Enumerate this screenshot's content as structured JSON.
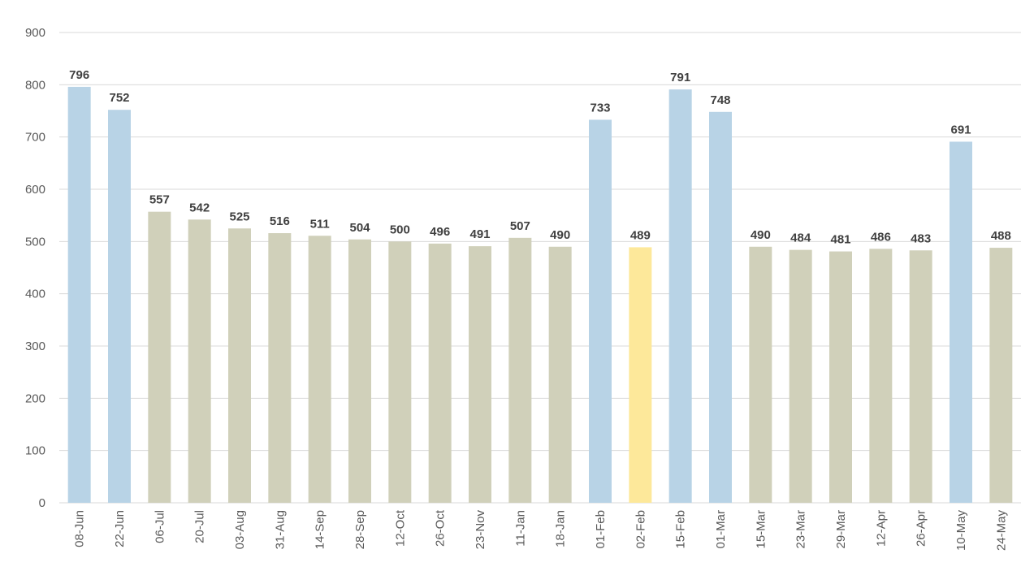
{
  "chart_data": {
    "type": "bar",
    "title": "",
    "xlabel": "",
    "ylabel": "",
    "ylim": [
      0,
      900
    ],
    "yticks": [
      0,
      100,
      200,
      300,
      400,
      500,
      600,
      700,
      800,
      900
    ],
    "grid": true,
    "legend": "none",
    "categories": [
      "08-Jun",
      "22-Jun",
      "06-Jul",
      "20-Jul",
      "03-Aug",
      "31-Aug",
      "14-Sep",
      "28-Sep",
      "12-Oct",
      "26-Oct",
      "23-Nov",
      "11-Jan",
      "18-Jan",
      "01-Feb",
      "02-Feb",
      "15-Feb",
      "01-Mar",
      "15-Mar",
      "23-Mar",
      "29-Mar",
      "12-Apr",
      "26-Apr",
      "10-May",
      "24-May"
    ],
    "values": [
      796,
      752,
      557,
      542,
      525,
      516,
      511,
      504,
      500,
      496,
      491,
      507,
      490,
      733,
      489,
      791,
      748,
      490,
      484,
      481,
      486,
      483,
      691,
      488
    ],
    "bar_colors": [
      "#b8d3e6",
      "#b8d3e6",
      "#d0d0ba",
      "#d0d0ba",
      "#d0d0ba",
      "#d0d0ba",
      "#d0d0ba",
      "#d0d0ba",
      "#d0d0ba",
      "#d0d0ba",
      "#d0d0ba",
      "#d0d0ba",
      "#d0d0ba",
      "#b8d3e6",
      "#fde89a",
      "#b8d3e6",
      "#b8d3e6",
      "#d0d0ba",
      "#d0d0ba",
      "#d0d0ba",
      "#d0d0ba",
      "#d0d0ba",
      "#b8d3e6",
      "#d0d0ba"
    ],
    "data_labels": true
  }
}
